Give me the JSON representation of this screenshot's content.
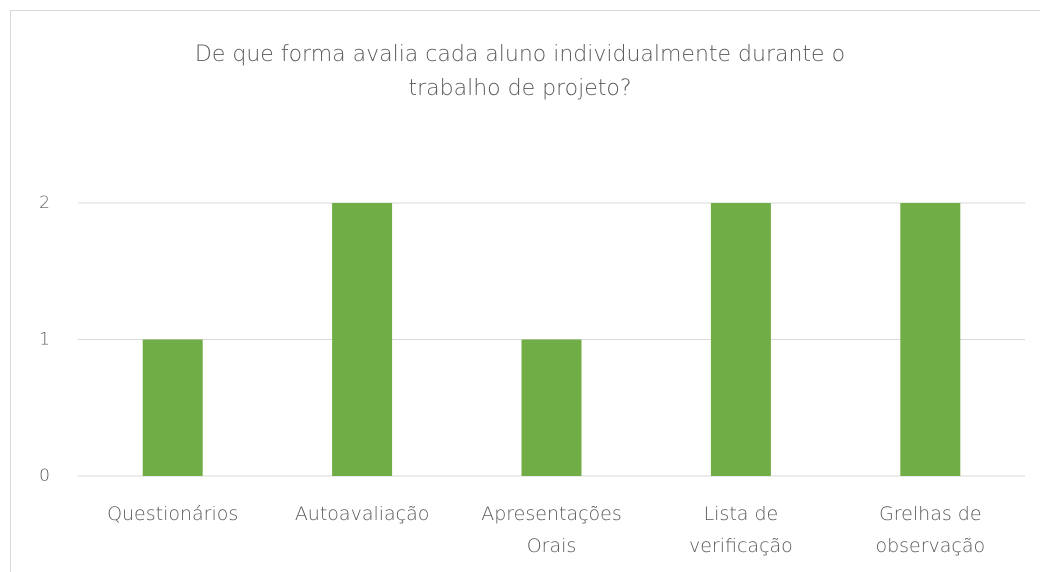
{
  "chart_data": {
    "type": "bar",
    "title": "De que forma avalia cada aluno individualmente durante o trabalho de projeto?",
    "categories": [
      "Questionários",
      "Autoavaliação",
      "Apresentações Orais",
      "Lista de verificação",
      "Grelhas de observação"
    ],
    "values": [
      1,
      2,
      1,
      2,
      2
    ],
    "color": "#70ad47",
    "ylim": [
      0,
      2
    ],
    "yticks": [
      0,
      1,
      2
    ],
    "grid": true
  }
}
